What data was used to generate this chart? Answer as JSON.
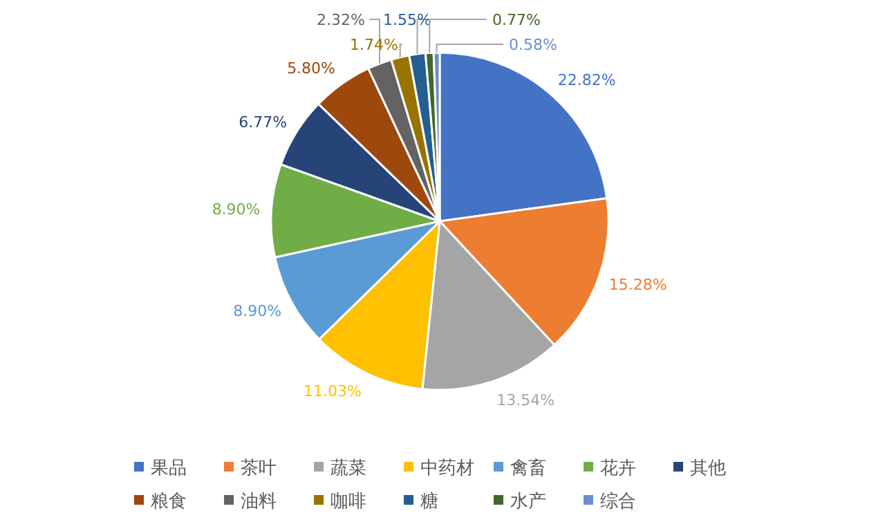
{
  "chart_data": {
    "type": "pie",
    "categories": [
      "果品",
      "茶叶",
      "蔬菜",
      "中药材",
      "禽畜",
      "花卉",
      "其他",
      "粮食",
      "油料",
      "咖啡",
      "糖",
      "水产",
      "综合"
    ],
    "values": [
      22.82,
      15.28,
      13.54,
      11.03,
      8.9,
      8.9,
      6.77,
      5.8,
      2.32,
      1.74,
      1.55,
      0.77,
      0.58
    ],
    "value_labels": [
      "22.82%",
      "15.28%",
      "13.54%",
      "11.03%",
      "8.90%",
      "8.90%",
      "6.77%",
      "5.80%",
      "2.32%",
      "1.74%",
      "1.55%",
      "0.77%",
      "0.58%"
    ],
    "colors": [
      "#4472c4",
      "#ed7d31",
      "#a5a5a5",
      "#ffc000",
      "#5b9bd5",
      "#70ad47",
      "#264478",
      "#9e480e",
      "#636363",
      "#997300",
      "#255e91",
      "#43682b",
      "#698ed0"
    ],
    "legend": "bottom"
  }
}
